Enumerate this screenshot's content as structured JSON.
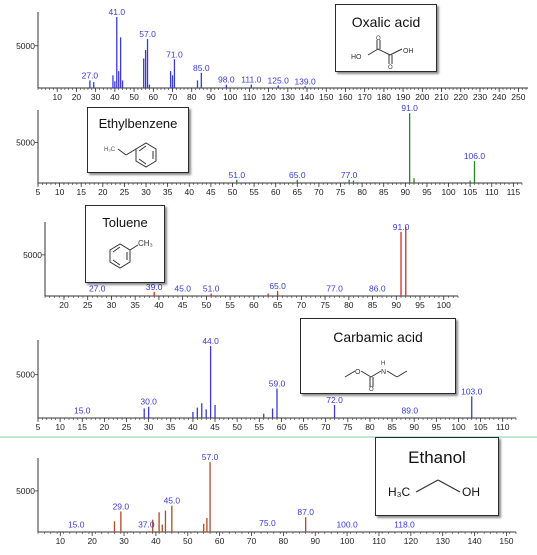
{
  "colors": {
    "oxalic": "#3a3ad6",
    "ethylbenzene": "#1f8a2a",
    "toluene": "#d42a2a",
    "carbamic": "#3a3ad6",
    "ethanol": "#b04a2a",
    "axis": "#333333",
    "peak_label": "#3a3ad6",
    "divider": "#7fd0a0"
  },
  "chart_data": [
    {
      "type": "bar",
      "compound": "Oxalic acid",
      "structure_icon": "oxalic-acid-structure-icon",
      "ylim": [
        0,
        9000
      ],
      "y_ticks": [
        5000
      ],
      "x_ticks": [
        10,
        20,
        30,
        40,
        50,
        60,
        70,
        80,
        90,
        100,
        110,
        120,
        130,
        140,
        150,
        160,
        170,
        180,
        190,
        200,
        210,
        220,
        230,
        240,
        250
      ],
      "xlim": [
        0,
        255
      ],
      "peaks": [
        {
          "x": 27,
          "y": 900
        },
        {
          "x": 29,
          "y": 700
        },
        {
          "x": 39,
          "y": 1500
        },
        {
          "x": 40,
          "y": 800
        },
        {
          "x": 41,
          "y": 8400
        },
        {
          "x": 42,
          "y": 2000
        },
        {
          "x": 43,
          "y": 6000
        },
        {
          "x": 44,
          "y": 900
        },
        {
          "x": 55,
          "y": 3500
        },
        {
          "x": 56,
          "y": 4500
        },
        {
          "x": 57,
          "y": 5800
        },
        {
          "x": 58,
          "y": 400
        },
        {
          "x": 69,
          "y": 2000
        },
        {
          "x": 70,
          "y": 1500
        },
        {
          "x": 71,
          "y": 3400
        },
        {
          "x": 83,
          "y": 900
        },
        {
          "x": 85,
          "y": 1800
        },
        {
          "x": 98,
          "y": 400
        },
        {
          "x": 111,
          "y": 400
        },
        {
          "x": 125,
          "y": 300
        },
        {
          "x": 139,
          "y": 200
        }
      ],
      "labels": [
        {
          "x": 27,
          "y": 900,
          "text": "27.0"
        },
        {
          "x": 41,
          "y": 8400,
          "text": "41.0"
        },
        {
          "x": 57,
          "y": 5800,
          "text": "57.0"
        },
        {
          "x": 71,
          "y": 3400,
          "text": "71.0"
        },
        {
          "x": 85,
          "y": 1800,
          "text": "85.0"
        },
        {
          "x": 98,
          "y": 400,
          "text": "98.0"
        },
        {
          "x": 111,
          "y": 400,
          "text": "111.0"
        },
        {
          "x": 125,
          "y": 300,
          "text": "125.0"
        },
        {
          "x": 139,
          "y": 200,
          "text": "139.0"
        }
      ]
    },
    {
      "type": "bar",
      "compound": "Ethylbenzene",
      "structure_icon": "ethylbenzene-structure-icon",
      "ylim": [
        0,
        9000
      ],
      "y_ticks": [
        5000
      ],
      "x_ticks": [
        5,
        10,
        15,
        20,
        25,
        30,
        35,
        40,
        45,
        50,
        55,
        60,
        65,
        70,
        75,
        80,
        85,
        90,
        95,
        100,
        105,
        110,
        115
      ],
      "xlim": [
        5,
        117
      ],
      "peaks": [
        {
          "x": 51,
          "y": 400
        },
        {
          "x": 65,
          "y": 400
        },
        {
          "x": 77,
          "y": 400
        },
        {
          "x": 78,
          "y": 300
        },
        {
          "x": 91,
          "y": 8600
        },
        {
          "x": 92,
          "y": 600
        },
        {
          "x": 105,
          "y": 300
        },
        {
          "x": 106,
          "y": 2700
        }
      ],
      "labels": [
        {
          "x": 51,
          "y": 400,
          "text": "51.0"
        },
        {
          "x": 65,
          "y": 400,
          "text": "65.0"
        },
        {
          "x": 77,
          "y": 400,
          "text": "77.0"
        },
        {
          "x": 91,
          "y": 8600,
          "text": "91.0"
        },
        {
          "x": 106,
          "y": 2700,
          "text": "106.0"
        }
      ]
    },
    {
      "type": "bar",
      "compound": "Toluene",
      "structure_icon": "toluene-structure-icon",
      "ylim": [
        0,
        9000
      ],
      "y_ticks": [
        5000
      ],
      "x_ticks": [
        20,
        25,
        30,
        35,
        40,
        45,
        50,
        55,
        60,
        65,
        70,
        75,
        80,
        85,
        90,
        95,
        100
      ],
      "xlim": [
        16,
        103
      ],
      "peaks": [
        {
          "x": 39,
          "y": 500
        },
        {
          "x": 51,
          "y": 300
        },
        {
          "x": 63,
          "y": 300
        },
        {
          "x": 65,
          "y": 600
        },
        {
          "x": 91,
          "y": 7800
        },
        {
          "x": 92,
          "y": 8400
        }
      ],
      "labels": [
        {
          "x": 27,
          "y": 300,
          "text": "27.0"
        },
        {
          "x": 39,
          "y": 500,
          "text": "39.0"
        },
        {
          "x": 45,
          "y": 300,
          "text": "45.0"
        },
        {
          "x": 51,
          "y": 300,
          "text": "51.0"
        },
        {
          "x": 65,
          "y": 600,
          "text": "65.0"
        },
        {
          "x": 77,
          "y": 300,
          "text": "77.0"
        },
        {
          "x": 86,
          "y": 300,
          "text": "86.0"
        },
        {
          "x": 91,
          "y": 7800,
          "text": "91.0"
        }
      ]
    },
    {
      "type": "bar",
      "compound": "Carbamic acid",
      "structure_icon": "carbamic-acid-structure-icon",
      "ylim": [
        0,
        9000
      ],
      "y_ticks": [
        5000
      ],
      "x_ticks": [
        5,
        10,
        15,
        20,
        25,
        30,
        35,
        40,
        45,
        50,
        55,
        60,
        65,
        70,
        75,
        80,
        85,
        90,
        95,
        100,
        105,
        110
      ],
      "xlim": [
        5,
        113
      ],
      "peaks": [
        {
          "x": 29,
          "y": 1100
        },
        {
          "x": 30,
          "y": 1300
        },
        {
          "x": 40,
          "y": 700
        },
        {
          "x": 41,
          "y": 1200
        },
        {
          "x": 42,
          "y": 1700
        },
        {
          "x": 43,
          "y": 1000
        },
        {
          "x": 44,
          "y": 8300
        },
        {
          "x": 45,
          "y": 1500
        },
        {
          "x": 56,
          "y": 500
        },
        {
          "x": 58,
          "y": 1100
        },
        {
          "x": 59,
          "y": 3400
        },
        {
          "x": 72,
          "y": 1500
        },
        {
          "x": 103,
          "y": 2500
        }
      ],
      "labels": [
        {
          "x": 15,
          "y": 300,
          "text": "15.0"
        },
        {
          "x": 30,
          "y": 1300,
          "text": "30.0"
        },
        {
          "x": 44,
          "y": 8300,
          "text": "44.0"
        },
        {
          "x": 59,
          "y": 3400,
          "text": "59.0"
        },
        {
          "x": 72,
          "y": 1500,
          "text": "72.0"
        },
        {
          "x": 89,
          "y": 300,
          "text": "89.0"
        },
        {
          "x": 103,
          "y": 2500,
          "text": "103.0"
        }
      ]
    },
    {
      "type": "bar",
      "compound": "Ethanol",
      "structure_icon": "ethanol-structure-icon",
      "ylim": [
        0,
        9000
      ],
      "y_ticks": [
        5000
      ],
      "x_ticks": [
        10,
        20,
        30,
        40,
        50,
        60,
        70,
        80,
        90,
        100,
        110,
        120,
        130,
        140,
        150
      ],
      "xlim": [
        3,
        153
      ],
      "peaks": [
        {
          "x": 27,
          "y": 1300
        },
        {
          "x": 29,
          "y": 2500
        },
        {
          "x": 39,
          "y": 1500
        },
        {
          "x": 41,
          "y": 2400
        },
        {
          "x": 42,
          "y": 900
        },
        {
          "x": 43,
          "y": 2600
        },
        {
          "x": 45,
          "y": 3200
        },
        {
          "x": 55,
          "y": 1000
        },
        {
          "x": 56,
          "y": 1700
        },
        {
          "x": 57,
          "y": 8500
        },
        {
          "x": 87,
          "y": 1800
        }
      ],
      "labels": [
        {
          "x": 15,
          "y": 300,
          "text": "15.0"
        },
        {
          "x": 29,
          "y": 2500,
          "text": "29.0"
        },
        {
          "x": 37,
          "y": 300,
          "text": "37.0"
        },
        {
          "x": 45,
          "y": 3200,
          "text": "45.0"
        },
        {
          "x": 57,
          "y": 8500,
          "text": "57.0"
        },
        {
          "x": 75,
          "y": 500,
          "text": "75.0"
        },
        {
          "x": 87,
          "y": 1800,
          "text": "87.0"
        },
        {
          "x": 100,
          "y": 300,
          "text": "100.0"
        },
        {
          "x": 118,
          "y": 300,
          "text": "118.0"
        }
      ]
    }
  ]
}
